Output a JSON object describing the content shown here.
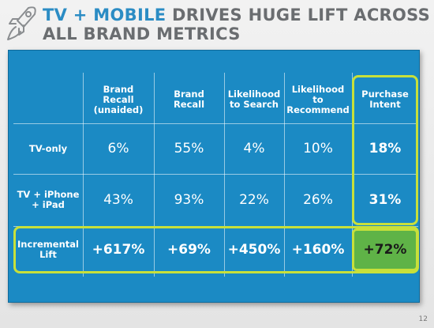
{
  "title": {
    "accent": "TV + MOBILE",
    "rest": " DRIVES HUGE LIFT ACROSS",
    "line2": "ALL BRAND METRICS"
  },
  "colors": {
    "panel": "#1b8ac4",
    "highlight": "#c8e03a",
    "accent_title": "#2b8cc4",
    "green_cell": "#5fb347"
  },
  "table": {
    "headers": [
      "Brand\nRecall\n(unaided)",
      "Brand\nRecall",
      "Likelihood\nto Search",
      "Likelihood\nto\nRecommend",
      "Purchase\nIntent"
    ],
    "rows": [
      {
        "label": "TV-only",
        "values": [
          "6%",
          "55%",
          "4%",
          "10%",
          "18%"
        ]
      },
      {
        "label": "TV + iPhone\n+ iPad",
        "values": [
          "43%",
          "93%",
          "22%",
          "26%",
          "31%"
        ]
      },
      {
        "label": "Incremental\nLift",
        "values": [
          "+617%",
          "+69%",
          "+450%",
          "+160%",
          "+72%"
        ]
      }
    ]
  },
  "page_number": "12"
}
